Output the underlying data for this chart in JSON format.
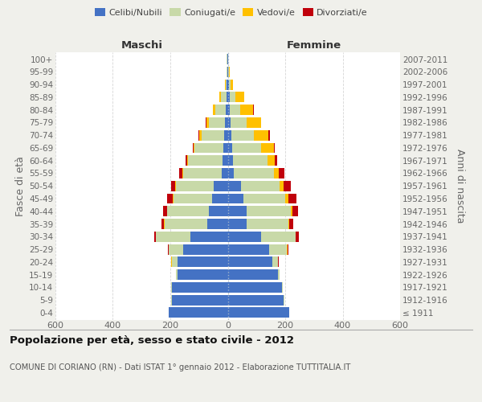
{
  "age_groups": [
    "100+",
    "95-99",
    "90-94",
    "85-89",
    "80-84",
    "75-79",
    "70-74",
    "65-69",
    "60-64",
    "55-59",
    "50-54",
    "45-49",
    "40-44",
    "35-39",
    "30-34",
    "25-29",
    "20-24",
    "15-19",
    "10-14",
    "5-9",
    "0-4"
  ],
  "birth_years": [
    "≤ 1911",
    "1912-1916",
    "1917-1921",
    "1922-1926",
    "1927-1931",
    "1932-1936",
    "1937-1941",
    "1942-1946",
    "1947-1951",
    "1952-1956",
    "1957-1961",
    "1962-1966",
    "1967-1971",
    "1972-1976",
    "1977-1981",
    "1982-1986",
    "1987-1991",
    "1992-1996",
    "1997-2001",
    "2002-2006",
    "2007-2011"
  ],
  "maschi": {
    "celibi": [
      2,
      2,
      3,
      5,
      8,
      10,
      12,
      15,
      18,
      20,
      50,
      55,
      65,
      70,
      130,
      155,
      175,
      175,
      195,
      195,
      205
    ],
    "coniugati": [
      1,
      2,
      5,
      20,
      35,
      55,
      80,
      100,
      120,
      135,
      130,
      135,
      145,
      150,
      120,
      50,
      20,
      5,
      2,
      1,
      0
    ],
    "vedovi": [
      0,
      0,
      2,
      5,
      8,
      10,
      8,
      5,
      3,
      3,
      2,
      1,
      1,
      1,
      1,
      1,
      1,
      0,
      0,
      0,
      0
    ],
    "divorziati": [
      0,
      0,
      0,
      0,
      1,
      2,
      3,
      3,
      5,
      10,
      15,
      20,
      15,
      10,
      5,
      2,
      1,
      0,
      0,
      0,
      0
    ]
  },
  "femmine": {
    "nubili": [
      2,
      2,
      4,
      6,
      8,
      10,
      12,
      15,
      18,
      20,
      45,
      55,
      65,
      65,
      115,
      145,
      155,
      175,
      190,
      195,
      215
    ],
    "coniugate": [
      0,
      2,
      5,
      20,
      35,
      55,
      80,
      100,
      120,
      140,
      135,
      145,
      155,
      145,
      120,
      60,
      20,
      5,
      2,
      1,
      0
    ],
    "vedove": [
      0,
      2,
      10,
      30,
      45,
      50,
      50,
      45,
      25,
      18,
      15,
      10,
      5,
      3,
      2,
      2,
      1,
      0,
      0,
      0,
      0
    ],
    "divorziate": [
      0,
      0,
      0,
      1,
      2,
      2,
      5,
      5,
      10,
      18,
      25,
      30,
      20,
      15,
      10,
      3,
      1,
      0,
      0,
      0,
      0
    ]
  },
  "colors": {
    "celibi_nubili": "#4472c4",
    "coniugati": "#c8d9a8",
    "vedovi": "#ffc000",
    "divorziati": "#c0000b"
  },
  "xlim": 600,
  "title": "Popolazione per età, sesso e stato civile - 2012",
  "subtitle": "COMUNE DI CORIANO (RN) - Dati ISTAT 1° gennaio 2012 - Elaborazione TUTTITALIA.IT",
  "ylabel_left": "Fasce di età",
  "ylabel_right": "Anni di nascita",
  "header_left": "Maschi",
  "header_right": "Femmine",
  "legend_labels": [
    "Celibi/Nubili",
    "Coniugati/e",
    "Vedovi/e",
    "Divorziati/e"
  ],
  "bg_color": "#f0f0eb",
  "plot_bg": "#ffffff"
}
